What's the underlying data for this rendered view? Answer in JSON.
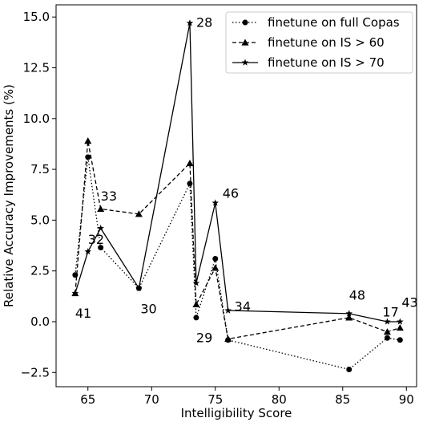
{
  "chart_data": {
    "type": "line",
    "xlabel": "Intelligibility Score",
    "ylabel": "Relative Accuracy Improvements (%)",
    "xlim": [
      62.5,
      90.8
    ],
    "ylim": [
      -3.2,
      15.6
    ],
    "x_ticks": [
      65,
      70,
      75,
      80,
      85,
      90
    ],
    "y_ticks": [
      -2.5,
      0.0,
      2.5,
      5.0,
      7.5,
      10.0,
      12.5,
      15.0
    ],
    "x_tick_labels": [
      "65",
      "70",
      "75",
      "80",
      "85",
      "90"
    ],
    "y_tick_labels": [
      "−2.5",
      "0.0",
      "2.5",
      "5.0",
      "7.5",
      "10.0",
      "12.5",
      "15.0"
    ],
    "grid": false,
    "legend_position": "top-right",
    "series": [
      {
        "name": "finetune on full Copas",
        "line_style": "dotted",
        "marker": "circle",
        "color": "#000000",
        "x": [
          64,
          65,
          66,
          69,
          73,
          73.5,
          75,
          76,
          85.5,
          88.5,
          89.5
        ],
        "y": [
          2.3,
          8.1,
          3.65,
          1.65,
          6.8,
          0.2,
          3.1,
          -0.9,
          -2.35,
          -0.8,
          -0.9
        ]
      },
      {
        "name": "finetune on IS > 60",
        "line_style": "dashed",
        "marker": "triangle",
        "color": "#000000",
        "x": [
          64,
          65,
          66,
          69,
          73,
          73.5,
          75,
          76,
          85.5,
          88.5,
          89.5
        ],
        "y": [
          1.4,
          8.9,
          5.55,
          5.3,
          7.8,
          0.85,
          2.65,
          -0.85,
          0.2,
          -0.5,
          -0.3
        ]
      },
      {
        "name": "finetune on IS > 70",
        "line_style": "solid",
        "marker": "star",
        "color": "#000000",
        "x": [
          64,
          65,
          66,
          69,
          73,
          73.5,
          75,
          76,
          85.5,
          88.5,
          89.5
        ],
        "y": [
          1.4,
          3.45,
          4.6,
          1.65,
          14.7,
          1.9,
          5.85,
          0.55,
          0.4,
          0.0,
          0.0
        ]
      }
    ],
    "annotations": [
      {
        "text": "41",
        "x": 64,
        "y": 1.4
      },
      {
        "text": "32",
        "x": 65,
        "y": 3.45
      },
      {
        "text": "33",
        "x": 66,
        "y": 5.55
      },
      {
        "text": "30",
        "x": 69,
        "y": 1.65
      },
      {
        "text": "28",
        "x": 73,
        "y": 14.7
      },
      {
        "text": "29",
        "x": 73.5,
        "y": 0.2
      },
      {
        "text": "46",
        "x": 75,
        "y": 5.85
      },
      {
        "text": "34",
        "x": 76,
        "y": 0.55
      },
      {
        "text": "48",
        "x": 85.5,
        "y": 0.4
      },
      {
        "text": "17",
        "x": 88.5,
        "y": 0.0
      },
      {
        "text": "43",
        "x": 89.5,
        "y": 0.0
      }
    ]
  }
}
